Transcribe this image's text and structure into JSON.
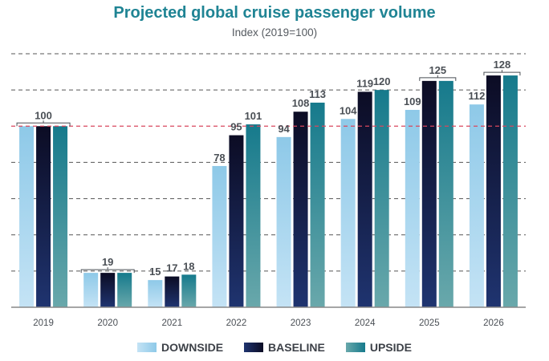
{
  "chart_data": {
    "type": "bar",
    "title": "Projected global cruise passenger volume",
    "subtitle": "Index (2019=100)",
    "xlabel": "",
    "ylabel": "",
    "ylim": [
      0,
      140
    ],
    "grid": true,
    "gridlines": [
      20,
      40,
      60,
      80,
      100,
      120,
      140
    ],
    "reference_line": 100,
    "categories": [
      "2019",
      "2020",
      "2021",
      "2022",
      "2023",
      "2024",
      "2025",
      "2026"
    ],
    "series": [
      {
        "name": "DOWNSIDE",
        "values": [
          100,
          19,
          15,
          78,
          94,
          104,
          109,
          112
        ],
        "color_top": "#8ec9e8",
        "color_bottom": "#c4e3f5"
      },
      {
        "name": "BASELINE",
        "values": [
          100,
          19,
          17,
          95,
          108,
          119,
          125,
          128
        ],
        "color_top": "#0c0c24",
        "color_bottom": "#1f3470"
      },
      {
        "name": "UPSIDE",
        "values": [
          100,
          19,
          18,
          101,
          113,
          120,
          125,
          128
        ],
        "color_top": "#167a8c",
        "color_bottom": "#69a8ab"
      }
    ],
    "data_labels": [
      {
        "category": "2019",
        "text": "100",
        "bracket": true,
        "series": [
          0,
          2
        ]
      },
      {
        "category": "2020",
        "text": "19",
        "bracket": true,
        "series": [
          0,
          2
        ]
      },
      {
        "category": "2021",
        "text": "15",
        "series": [
          0
        ]
      },
      {
        "category": "2021",
        "text": "17",
        "series": [
          1
        ]
      },
      {
        "category": "2021",
        "text": "18",
        "series": [
          2
        ]
      },
      {
        "category": "2022",
        "text": "78",
        "series": [
          0
        ]
      },
      {
        "category": "2022",
        "text": "95",
        "series": [
          1
        ]
      },
      {
        "category": "2022",
        "text": "101",
        "series": [
          2
        ]
      },
      {
        "category": "2023",
        "text": "94",
        "series": [
          0
        ]
      },
      {
        "category": "2023",
        "text": "108",
        "series": [
          1
        ]
      },
      {
        "category": "2023",
        "text": "113",
        "series": [
          2
        ]
      },
      {
        "category": "2024",
        "text": "104",
        "series": [
          0
        ]
      },
      {
        "category": "2024",
        "text": "119",
        "series": [
          1
        ]
      },
      {
        "category": "2024",
        "text": "120",
        "series": [
          2
        ]
      },
      {
        "category": "2025",
        "text": "109",
        "series": [
          0
        ]
      },
      {
        "category": "2025",
        "text": "125",
        "bracket": true,
        "series": [
          1,
          2
        ]
      },
      {
        "category": "2026",
        "text": "112",
        "series": [
          0
        ]
      },
      {
        "category": "2026",
        "text": "128",
        "bracket": true,
        "series": [
          1,
          2
        ]
      }
    ],
    "legend": {
      "position": "bottom",
      "entries": [
        "DOWNSIDE",
        "BASELINE",
        "UPSIDE"
      ]
    },
    "colors": {
      "title": "#1f8494",
      "grid": "#555555",
      "reference": "#d9475e",
      "axis": "#888888"
    }
  }
}
